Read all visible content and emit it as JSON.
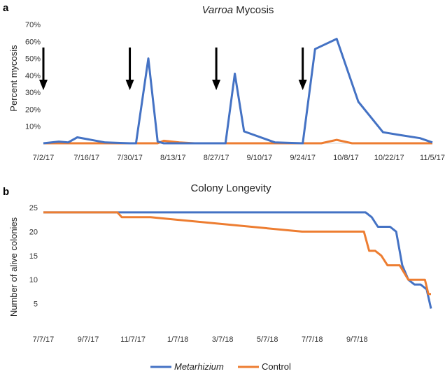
{
  "colors": {
    "metarhizium": "#4472C4",
    "control": "#ED7D31",
    "arrow": "#000000",
    "grid_axis": "#D9D9D9"
  },
  "chart_data": [
    {
      "panel_label": "a",
      "type": "line",
      "title": "Varroa Mycosis",
      "title_italic_part": "Varroa",
      "title_rest": " Mycosis",
      "xlabel": "",
      "ylabel": "Percent mycosis",
      "ylim": [
        0,
        70
      ],
      "y_ticks": [
        10,
        20,
        30,
        40,
        50,
        60,
        70
      ],
      "y_tick_labels": [
        "10%",
        "20%",
        "30%",
        "40%",
        "50%",
        "60%",
        "70%"
      ],
      "x_tick_labels": [
        "7/2/17",
        "7/16/17",
        "7/30/17",
        "8/13/17",
        "8/27/17",
        "9/10/17",
        "9/24/17",
        "10/8/17",
        "10/22/17",
        "11/5/17"
      ],
      "x_start": "2017-07-02",
      "x_end": "2017-11-05",
      "grid": false,
      "treatment_arrows": [
        "2017-07-02",
        "2017-07-30",
        "2017-08-27",
        "2017-09-24"
      ],
      "series": [
        {
          "name": "Metarhizium",
          "x": [
            "2017-07-02",
            "2017-07-07",
            "2017-07-10",
            "2017-07-13",
            "2017-07-22",
            "2017-07-30",
            "2017-08-01",
            "2017-08-05",
            "2017-08-08",
            "2017-08-10",
            "2017-08-15",
            "2017-08-20",
            "2017-08-27",
            "2017-08-30",
            "2017-09-02",
            "2017-09-05",
            "2017-09-15",
            "2017-09-24",
            "2017-09-28",
            "2017-10-05",
            "2017-10-12",
            "2017-10-20",
            "2017-10-25",
            "2017-11-01",
            "2017-11-05"
          ],
          "values": [
            0,
            1,
            0.5,
            3.5,
            0.5,
            0,
            0,
            50,
            1,
            0,
            0,
            0,
            0,
            0,
            41,
            7,
            0.5,
            0,
            55.5,
            61.5,
            24.5,
            6.5,
            5,
            3,
            0.5
          ]
        },
        {
          "name": "Control",
          "x": [
            "2017-07-02",
            "2017-08-08",
            "2017-08-10",
            "2017-08-15",
            "2017-08-20",
            "2017-09-24",
            "2017-09-30",
            "2017-10-05",
            "2017-10-10",
            "2017-11-05"
          ],
          "values": [
            0,
            0,
            1.5,
            0.5,
            0,
            0,
            0,
            2,
            0,
            0
          ]
        }
      ]
    },
    {
      "panel_label": "b",
      "type": "line",
      "title": "Colony Longevity",
      "xlabel": "",
      "ylabel": "Number of alive colonies",
      "ylim": [
        0,
        25
      ],
      "y_ticks": [
        5,
        10,
        15,
        20,
        25
      ],
      "y_tick_labels": [
        "5",
        "10",
        "15",
        "20",
        "25"
      ],
      "x_tick_labels": [
        "7/7/17",
        "9/7/17",
        "11/7/17",
        "1/7/18",
        "3/7/18",
        "5/7/18",
        "7/7/18",
        "9/7/18"
      ],
      "x_start": "2017-07-07",
      "x_end": "2018-09-25",
      "grid": false,
      "legend_position": "bottom",
      "series": [
        {
          "name": "Metarhizium",
          "x": [
            "2017-07-07",
            "2018-07-12",
            "2018-07-19",
            "2018-07-26",
            "2018-08-09",
            "2018-08-16",
            "2018-08-23",
            "2018-08-30",
            "2018-09-06",
            "2018-09-13",
            "2018-09-20",
            "2018-09-25"
          ],
          "values": [
            24,
            24,
            23,
            21,
            21,
            20,
            13,
            10,
            9,
            9,
            8,
            4
          ]
        },
        {
          "name": "Control",
          "x": [
            "2017-07-07",
            "2017-09-30",
            "2017-10-05",
            "2017-11-07",
            "2018-04-30",
            "2018-07-10",
            "2018-07-16",
            "2018-07-23",
            "2018-07-30",
            "2018-08-06",
            "2018-08-20",
            "2018-08-30",
            "2018-09-05",
            "2018-09-18",
            "2018-09-22",
            "2018-09-25"
          ],
          "values": [
            24,
            24,
            23,
            23,
            20,
            20,
            16,
            16,
            15,
            13,
            13,
            10,
            10,
            10,
            7,
            7
          ]
        }
      ]
    }
  ]
}
